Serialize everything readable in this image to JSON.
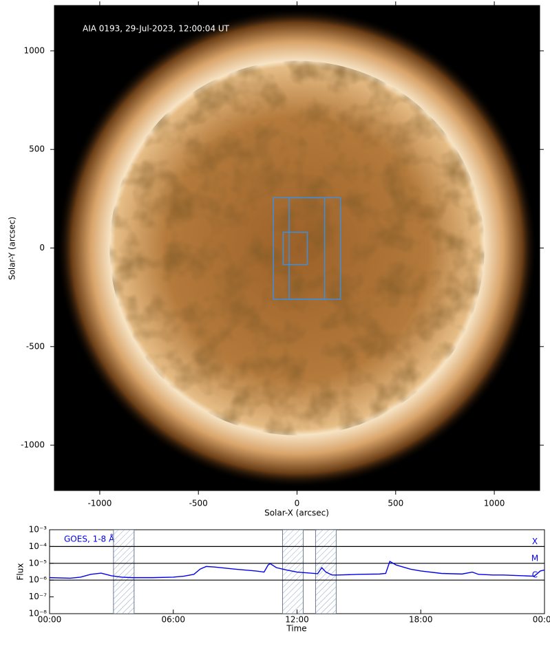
{
  "chart_data": [
    {
      "type": "image",
      "title": "AIA 0193, 29-Jul-2023, 12:00:04 UT",
      "xlabel": "Solar-X (arcsec)",
      "ylabel": "Solar-Y (arcsec)",
      "xlim": [
        -1230,
        1230
      ],
      "ylim": [
        -1230,
        1230
      ],
      "xticks": [
        -1000,
        -500,
        0,
        500,
        1000
      ],
      "yticks": [
        -1000,
        -500,
        0,
        500,
        1000
      ],
      "disk_radius": 950,
      "box_color": "#3b8ee0",
      "boxes": [
        {
          "x": [
            -120,
            140
          ],
          "y": [
            -260,
            255
          ]
        },
        {
          "x": [
            -40,
            220
          ],
          "y": [
            -260,
            255
          ]
        },
        {
          "x": [
            -70,
            52
          ],
          "y": [
            -84,
            80
          ]
        }
      ]
    },
    {
      "type": "line",
      "xlabel": "Time",
      "ylabel": "Flux",
      "log_y": true,
      "xlim": [
        0,
        24
      ],
      "ylim": [
        1e-08,
        0.001
      ],
      "xticks": [
        {
          "value": 0,
          "label": "00:00"
        },
        {
          "value": 6,
          "label": "06:00"
        },
        {
          "value": 12,
          "label": "12:00"
        },
        {
          "value": 18,
          "label": "18:00"
        },
        {
          "value": 24,
          "label": "00:00"
        }
      ],
      "yticks": [
        {
          "value": 1e-08,
          "label": "10⁻⁸"
        },
        {
          "value": 1e-07,
          "label": "10⁻⁷"
        },
        {
          "value": 1e-06,
          "label": "10⁻⁶"
        },
        {
          "value": 1e-05,
          "label": "10⁻⁵"
        },
        {
          "value": 0.0001,
          "label": "10⁻⁴"
        },
        {
          "value": 0.001,
          "label": "10⁻³"
        }
      ],
      "levels": [
        {
          "value": 0.0001,
          "label": "X"
        },
        {
          "value": 1e-05,
          "label": "M"
        },
        {
          "value": 1e-06,
          "label": "C"
        }
      ],
      "intervals": [
        [
          3.1,
          4.1
        ],
        [
          11.3,
          12.3
        ],
        [
          12.9,
          13.9
        ]
      ],
      "x": [
        0,
        1,
        1.5,
        2,
        2.5,
        3,
        3.5,
        4,
        5,
        6,
        6.5,
        7,
        7.3,
        7.6,
        8,
        9,
        10,
        10.4,
        10.6,
        10.7,
        11,
        11.5,
        12,
        12.5,
        13,
        13.2,
        13.4,
        13.7,
        14,
        15,
        16,
        16.3,
        16.5,
        16.8,
        17.5,
        18,
        19,
        20,
        20.5,
        20.8,
        21.5,
        22,
        23,
        23.5,
        23.8,
        24
      ],
      "series": [
        {
          "name": "GOES, 1-8 Å",
          "color": "#0000ee",
          "values": [
            1.4e-06,
            1.3e-06,
            1.5e-06,
            2.2e-06,
            2.6e-06,
            1.8e-06,
            1.5e-06,
            1.4e-06,
            1.4e-06,
            1.5e-06,
            1.7e-06,
            2.2e-06,
            4.5e-06,
            6.5e-06,
            6e-06,
            4.5e-06,
            3.5e-06,
            3e-06,
            8e-06,
            9.5e-06,
            5.5e-06,
            4e-06,
            3e-06,
            2.7e-06,
            2.4e-06,
            5.5e-06,
            3e-06,
            2e-06,
            2e-06,
            2.2e-06,
            2.3e-06,
            2.5e-06,
            1.3e-05,
            8e-06,
            4.5e-06,
            3.5e-06,
            2.5e-06,
            2.3e-06,
            3e-06,
            2.2e-06,
            2e-06,
            2e-06,
            1.8e-06,
            1.7e-06,
            3.5e-06,
            4e-06
          ]
        }
      ]
    }
  ]
}
